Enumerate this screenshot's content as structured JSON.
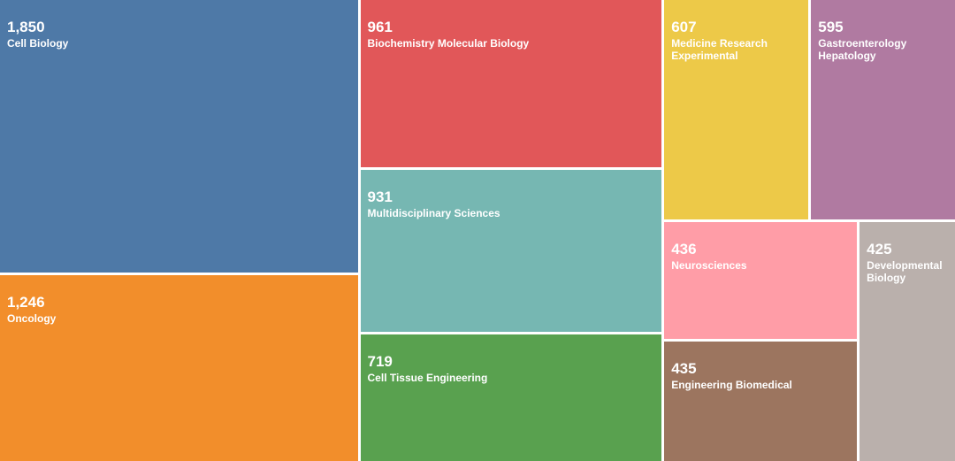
{
  "chart_data": {
    "type": "treemap",
    "title": "",
    "items": [
      {
        "value": 1850,
        "value_label": "1,850",
        "label": "Cell Biology",
        "color": "#4e79a7"
      },
      {
        "value": 1246,
        "value_label": "1,246",
        "label": "Oncology",
        "color": "#f28e2b"
      },
      {
        "value": 961,
        "value_label": "961",
        "label": "Biochemistry Molecular Biology",
        "color": "#e15759"
      },
      {
        "value": 931,
        "value_label": "931",
        "label": "Multidisciplinary Sciences",
        "color": "#76b7b2"
      },
      {
        "value": 719,
        "value_label": "719",
        "label": "Cell Tissue Engineering",
        "color": "#59a14f"
      },
      {
        "value": 607,
        "value_label": "607",
        "label": "Medicine Research Experimental",
        "color": "#edc948"
      },
      {
        "value": 595,
        "value_label": "595",
        "label": "Gastroenterology Hepatology",
        "color": "#b07aa1"
      },
      {
        "value": 436,
        "value_label": "436",
        "label": "Neurosciences",
        "color": "#ff9da7"
      },
      {
        "value": 435,
        "value_label": "435",
        "label": "Engineering Biomedical",
        "color": "#9c755f"
      },
      {
        "value": 425,
        "value_label": "425",
        "label": "Developmental Biology",
        "color": "#bab0ac"
      }
    ]
  }
}
